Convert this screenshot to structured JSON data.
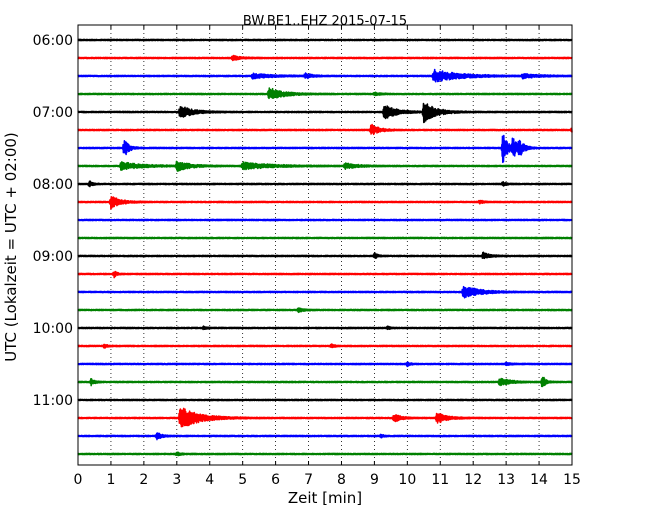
{
  "chart_data": {
    "type": "line",
    "title": "BW.BE1..EHZ 2015-07-15",
    "xlabel": "Zeit  [min]",
    "ylabel": "UTC (Lokalzeit = UTC + 02:00)",
    "xlim": [
      0,
      15
    ],
    "x_ticks": [
      "0",
      "1",
      "2",
      "3",
      "4",
      "5",
      "6",
      "7",
      "8",
      "9",
      "10",
      "11",
      "12",
      "13",
      "14",
      "15"
    ],
    "y_tick_labels": [
      "06:00",
      "07:00",
      "08:00",
      "09:00",
      "10:00",
      "11:00"
    ],
    "grid": "vertical dotted lines at each minute",
    "trace_start_utc": "06:00",
    "trace_interval_min": 15,
    "trace_colors": [
      "#000000",
      "#ff0000",
      "#0000ff",
      "#008000"
    ],
    "traces": [
      {
        "start": "06:00",
        "events": []
      },
      {
        "start": "06:15",
        "events": [
          {
            "t": 4.7,
            "amp": 0.35,
            "dur": 0.5
          }
        ]
      },
      {
        "start": "06:30",
        "events": [
          {
            "t": 5.3,
            "amp": 0.35,
            "dur": 1.2
          },
          {
            "t": 6.9,
            "amp": 0.4,
            "dur": 0.4
          },
          {
            "t": 10.8,
            "amp": 0.9,
            "dur": 1.6
          },
          {
            "t": 13.5,
            "amp": 0.3,
            "dur": 1.0
          }
        ]
      },
      {
        "start": "06:45",
        "events": [
          {
            "t": 5.8,
            "amp": 0.9,
            "dur": 0.9
          },
          {
            "t": 9.0,
            "amp": 0.2,
            "dur": 0.4
          }
        ]
      },
      {
        "start": "07:00",
        "events": [
          {
            "t": 3.1,
            "amp": 0.9,
            "dur": 0.8
          },
          {
            "t": 9.3,
            "amp": 1.0,
            "dur": 0.8
          },
          {
            "t": 10.5,
            "amp": 1.4,
            "dur": 0.8
          }
        ]
      },
      {
        "start": "07:15",
        "events": [
          {
            "t": 8.9,
            "amp": 0.8,
            "dur": 0.5
          },
          {
            "t": 15.0,
            "amp": 0.3,
            "dur": 0.2
          }
        ]
      },
      {
        "start": "07:30",
        "events": [
          {
            "t": 1.4,
            "amp": 1.3,
            "dur": 0.3
          },
          {
            "t": 12.9,
            "amp": 2.2,
            "dur": 0.3
          },
          {
            "t": 13.2,
            "amp": 1.4,
            "dur": 0.3
          },
          {
            "t": 13.4,
            "amp": 1.0,
            "dur": 0.3
          }
        ]
      },
      {
        "start": "07:45",
        "events": [
          {
            "t": 1.3,
            "amp": 0.6,
            "dur": 1.2
          },
          {
            "t": 3.0,
            "amp": 0.7,
            "dur": 0.8
          },
          {
            "t": 5.0,
            "amp": 0.5,
            "dur": 1.8
          },
          {
            "t": 8.1,
            "amp": 0.4,
            "dur": 0.8
          }
        ]
      },
      {
        "start": "08:00",
        "events": [
          {
            "t": 0.35,
            "amp": 0.4,
            "dur": 0.2
          },
          {
            "t": 12.9,
            "amp": 0.3,
            "dur": 0.2
          }
        ]
      },
      {
        "start": "08:15",
        "events": [
          {
            "t": 1.0,
            "amp": 0.9,
            "dur": 0.6
          },
          {
            "t": 12.2,
            "amp": 0.3,
            "dur": 0.2
          }
        ]
      },
      {
        "start": "08:30",
        "events": []
      },
      {
        "start": "08:45",
        "events": []
      },
      {
        "start": "09:00",
        "events": [
          {
            "t": 9.0,
            "amp": 0.45,
            "dur": 0.2
          },
          {
            "t": 12.3,
            "amp": 0.5,
            "dur": 0.4
          }
        ]
      },
      {
        "start": "09:15",
        "events": [
          {
            "t": 1.1,
            "amp": 0.45,
            "dur": 0.2
          }
        ]
      },
      {
        "start": "09:30",
        "events": [
          {
            "t": 11.7,
            "amp": 0.9,
            "dur": 1.0
          }
        ]
      },
      {
        "start": "09:45",
        "events": [
          {
            "t": 6.7,
            "amp": 0.3,
            "dur": 0.3
          }
        ]
      },
      {
        "start": "10:00",
        "events": [
          {
            "t": 3.8,
            "amp": 0.2,
            "dur": 0.2
          },
          {
            "t": 9.4,
            "amp": 0.2,
            "dur": 0.2
          }
        ]
      },
      {
        "start": "10:15",
        "events": [
          {
            "t": 0.8,
            "amp": 0.3,
            "dur": 0.2
          },
          {
            "t": 7.7,
            "amp": 0.3,
            "dur": 0.2
          }
        ]
      },
      {
        "start": "10:30",
        "events": [
          {
            "t": 10.0,
            "amp": 0.3,
            "dur": 0.2
          },
          {
            "t": 13.0,
            "amp": 0.2,
            "dur": 0.3
          }
        ]
      },
      {
        "start": "10:45",
        "events": [
          {
            "t": 0.4,
            "amp": 0.5,
            "dur": 0.2
          },
          {
            "t": 12.8,
            "amp": 0.6,
            "dur": 0.6
          },
          {
            "t": 14.1,
            "amp": 1.0,
            "dur": 0.2
          }
        ]
      },
      {
        "start": "11:00",
        "events": []
      },
      {
        "start": "11:15",
        "events": [
          {
            "t": 3.1,
            "amp": 1.6,
            "dur": 1.2
          },
          {
            "t": 9.6,
            "amp": 0.6,
            "dur": 0.4
          },
          {
            "t": 10.9,
            "amp": 0.8,
            "dur": 0.6
          }
        ]
      },
      {
        "start": "11:30",
        "events": [
          {
            "t": 2.4,
            "amp": 0.5,
            "dur": 0.3
          },
          {
            "t": 9.2,
            "amp": 0.2,
            "dur": 0.2
          }
        ]
      },
      {
        "start": "11:45",
        "events": [
          {
            "t": 3.0,
            "amp": 0.3,
            "dur": 0.2
          }
        ]
      }
    ]
  }
}
